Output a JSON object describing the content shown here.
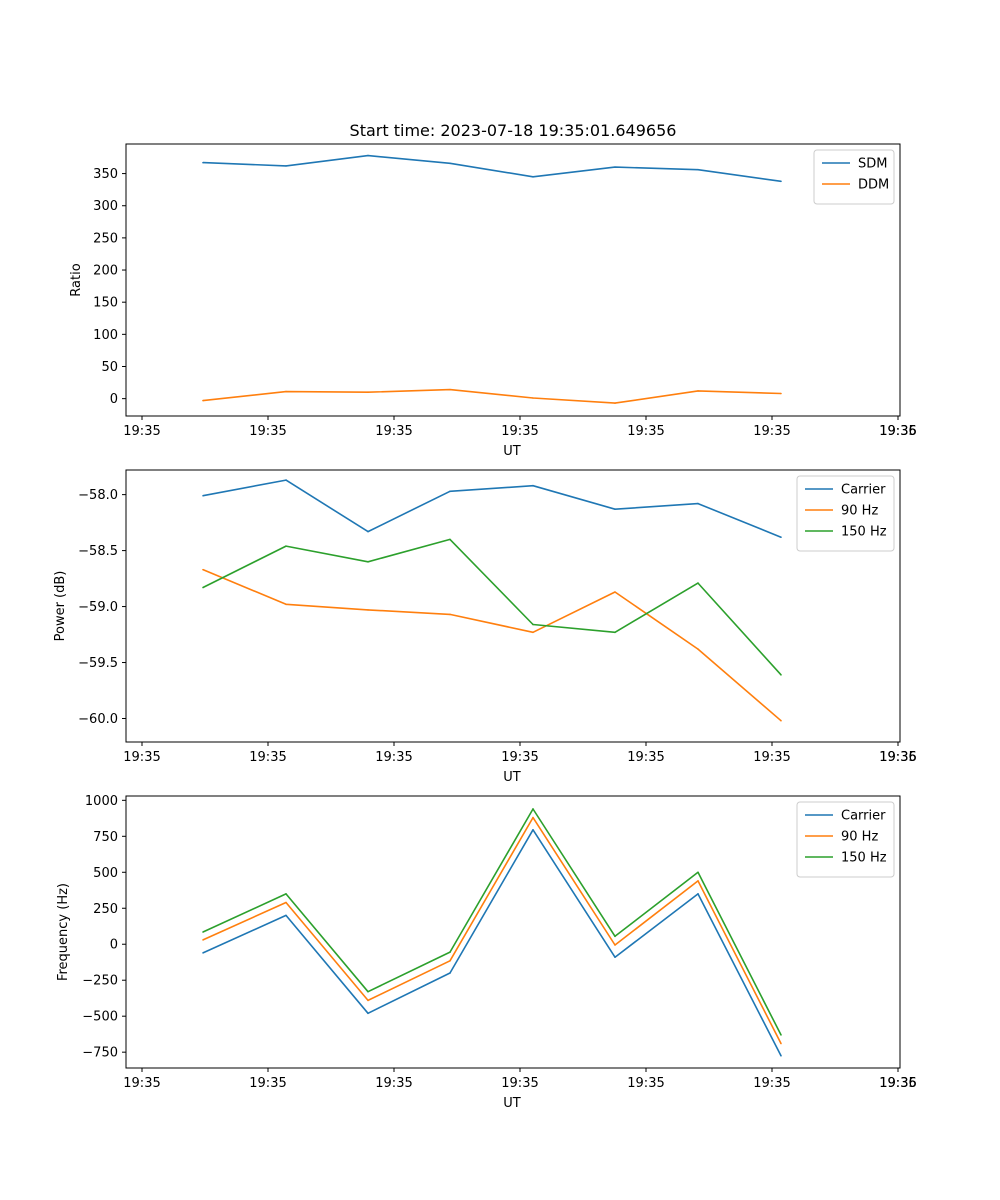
{
  "title": "Start time: 2023-07-18 19:35:01.649656",
  "colors": {
    "blue": "#1f77b4",
    "orange": "#ff7f0e",
    "green": "#2ca02c"
  },
  "chart_data": [
    {
      "type": "line",
      "ylabel": "Ratio",
      "xlabel": "UT",
      "xticklabels": [
        "19:35",
        "19:35",
        "19:35",
        "19:35",
        "19:35",
        "19:35",
        "19:35",
        "19:36"
      ],
      "yticks": [
        0,
        50,
        100,
        150,
        200,
        250,
        300,
        350
      ],
      "ytick_labels": [
        "0",
        "50",
        "100",
        "150",
        "200",
        "250",
        "300",
        "350"
      ],
      "ylim": [
        -27,
        396
      ],
      "legend": "top-right",
      "series": [
        {
          "name": "SDM",
          "color": "#1f77b4",
          "values": [
            367,
            362,
            378,
            366,
            345,
            360,
            356,
            338
          ]
        },
        {
          "name": "DDM",
          "color": "#ff7f0e",
          "values": [
            -3,
            11,
            10,
            14,
            1,
            -7,
            12,
            8
          ]
        }
      ]
    },
    {
      "type": "line",
      "ylabel": "Power (dB)",
      "xlabel": "UT",
      "xticklabels": [
        "19:35",
        "19:35",
        "19:35",
        "19:35",
        "19:35",
        "19:35",
        "19:35",
        "19:36"
      ],
      "yticks": [
        -60.0,
        -59.5,
        -59.0,
        -58.5,
        -58.0
      ],
      "ytick_labels": [
        "−60.0",
        "−59.5",
        "−59.0",
        "−58.5",
        "−58.0"
      ],
      "ylim": [
        -60.21,
        -57.78
      ],
      "legend": "top-right",
      "series": [
        {
          "name": "Carrier",
          "color": "#1f77b4",
          "values": [
            -58.01,
            -57.87,
            -58.33,
            -57.97,
            -57.92,
            -58.13,
            -58.08,
            -58.38
          ]
        },
        {
          "name": "90 Hz",
          "color": "#ff7f0e",
          "values": [
            -58.67,
            -58.98,
            -59.03,
            -59.07,
            -59.23,
            -58.87,
            -59.38,
            -60.02
          ]
        },
        {
          "name": "150 Hz",
          "color": "#2ca02c",
          "values": [
            -58.83,
            -58.46,
            -58.6,
            -58.4,
            -59.16,
            -59.23,
            -58.79,
            -59.61
          ]
        }
      ]
    },
    {
      "type": "line",
      "ylabel": "Frequency (Hz)",
      "xlabel": "UT",
      "xticklabels": [
        "19:35",
        "19:35",
        "19:35",
        "19:35",
        "19:35",
        "19:35",
        "19:35",
        "19:36"
      ],
      "yticks": [
        -750,
        -500,
        -250,
        0,
        250,
        500,
        750,
        1000
      ],
      "ytick_labels": [
        "−750",
        "−500",
        "−250",
        "0",
        "250",
        "500",
        "750",
        "1000"
      ],
      "ylim": [
        -860,
        1030
      ],
      "legend": "top-right",
      "series": [
        {
          "name": "Carrier",
          "color": "#1f77b4",
          "values": [
            -60,
            200,
            -480,
            -200,
            795,
            -90,
            350,
            -775
          ]
        },
        {
          "name": "90 Hz",
          "color": "#ff7f0e",
          "values": [
            30,
            290,
            -390,
            -115,
            880,
            -5,
            440,
            -690
          ]
        },
        {
          "name": "150 Hz",
          "color": "#2ca02c",
          "values": [
            85,
            350,
            -330,
            -55,
            940,
            55,
            500,
            -630
          ]
        }
      ]
    }
  ]
}
